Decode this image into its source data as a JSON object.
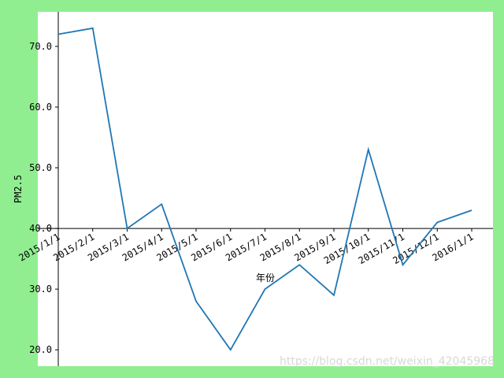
{
  "chart_data": {
    "type": "line",
    "x_label": "年份",
    "y_label": "PM2.5",
    "categories": [
      "2015/1/1",
      "2015/2/1",
      "2015/3/1",
      "2015/4/1",
      "2015/5/1",
      "2015/6/1",
      "2015/7/1",
      "2015/8/1",
      "2015/9/1",
      "2015/10/1",
      "2015/11/1",
      "2015/12/1",
      "2016/1/1"
    ],
    "series": [
      {
        "name": "PM2.5",
        "color": "#1f77b4",
        "values": [
          72,
          73,
          40,
          44,
          28,
          20,
          30,
          34,
          29,
          53,
          34,
          41,
          43
        ]
      }
    ],
    "ylim": [
      17.3,
      75.7
    ],
    "yticks": [
      {
        "value": 20,
        "label": "20.0"
      },
      {
        "value": 30,
        "label": "30.0"
      },
      {
        "value": 40,
        "label": "40.0"
      },
      {
        "value": 50,
        "label": "50.0"
      },
      {
        "value": 60,
        "label": "60.0"
      },
      {
        "value": 70,
        "label": "70.0"
      }
    ],
    "x_axis_at": 40,
    "watermark": "https://blog.csdn.net/weixin_42045968"
  }
}
